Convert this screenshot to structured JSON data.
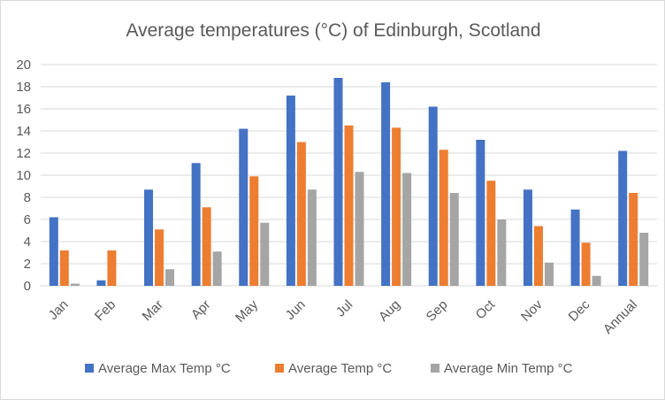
{
  "chart_data": {
    "type": "bar",
    "title": "Average temperatures (°C) of Edinburgh, Scotland",
    "xlabel": "",
    "ylabel": "",
    "categories": [
      "Jan",
      "Feb",
      "Mar",
      "Apr",
      "May",
      "Jun",
      "Jul",
      "Aug",
      "Sep",
      "Oct",
      "Nov",
      "Dec",
      "Annual"
    ],
    "ylim": [
      0,
      20
    ],
    "yticks": [
      "0",
      "2",
      "4",
      "6",
      "8",
      "10",
      "12",
      "14",
      "16",
      "18",
      "20"
    ],
    "grid": true,
    "legend_position": "bottom",
    "series": [
      {
        "name": "Average Max Temp °C",
        "color": "#4472c4",
        "values": [
          6.2,
          0.5,
          8.7,
          11.1,
          14.2,
          17.2,
          18.8,
          18.4,
          16.2,
          13.2,
          8.7,
          6.9,
          12.2
        ]
      },
      {
        "name": "Average Temp °C",
        "color": "#ed7d31",
        "values": [
          3.2,
          3.2,
          5.1,
          7.1,
          9.9,
          13.0,
          14.5,
          14.3,
          12.3,
          9.5,
          5.4,
          3.9,
          8.4
        ]
      },
      {
        "name": "Average Min Temp °C",
        "color": "#a5a5a5",
        "values": [
          0.2,
          0.0,
          1.5,
          3.1,
          5.7,
          8.7,
          10.3,
          10.2,
          8.4,
          6.0,
          2.1,
          0.9,
          4.8
        ]
      }
    ]
  }
}
